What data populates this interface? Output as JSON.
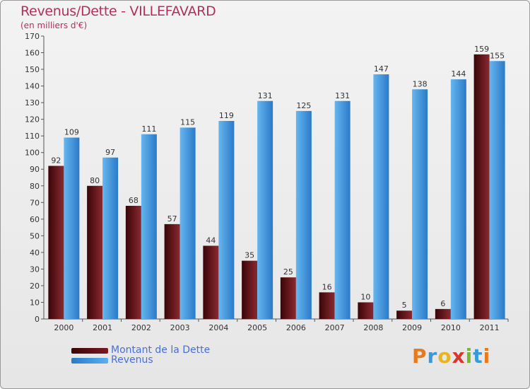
{
  "colors": {
    "dette": "#7a1a22",
    "revenus": "#3b8fdc",
    "title": "#b03060",
    "legend_text": "#4a6fd8"
  },
  "chart_data": {
    "type": "bar",
    "title": "Revenus/Dette - VILLEFAVARD",
    "subtitle": "(en milliers d'€)",
    "categories": [
      "2000",
      "2001",
      "2002",
      "2003",
      "2004",
      "2005",
      "2006",
      "2007",
      "2008",
      "2009",
      "2010",
      "2011"
    ],
    "series": [
      {
        "name": "Montant de la Dette",
        "values": [
          92,
          80,
          68,
          57,
          44,
          35,
          25,
          16,
          10,
          5,
          6,
          159
        ]
      },
      {
        "name": "Revenus",
        "values": [
          109,
          97,
          111,
          115,
          119,
          131,
          125,
          131,
          147,
          138,
          144,
          155
        ]
      }
    ],
    "yticks": [
      0,
      10,
      20,
      30,
      40,
      50,
      60,
      70,
      80,
      90,
      100,
      110,
      120,
      130,
      140,
      150,
      160,
      170
    ],
    "ylim": [
      0,
      170
    ],
    "grid": false,
    "legend": "bottom-left"
  },
  "logo": {
    "letters": [
      "P",
      "r",
      "o",
      "x",
      "i",
      "t",
      "i"
    ]
  }
}
